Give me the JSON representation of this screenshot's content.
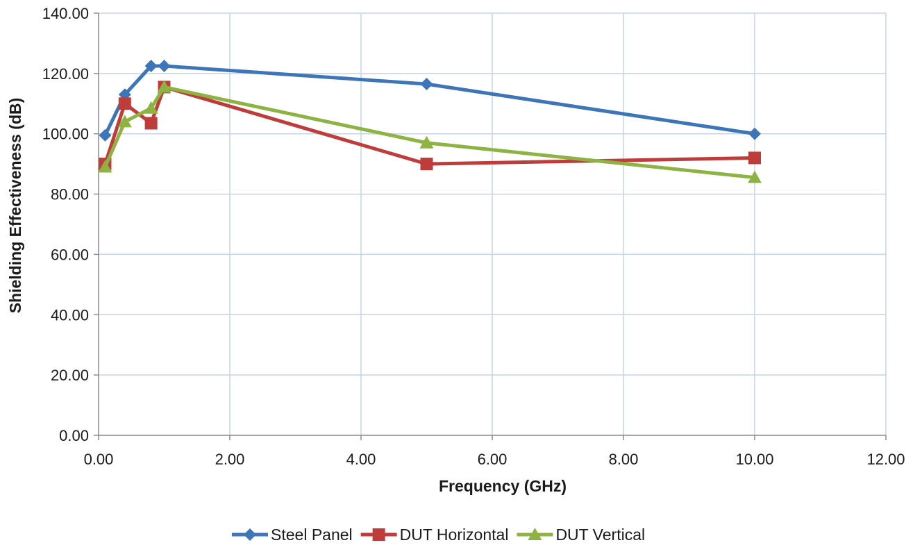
{
  "chart_data": {
    "type": "line",
    "title": "",
    "xlabel": "Frequency (GHz)",
    "ylabel": "Shielding Effectiveness (dB)",
    "xlim": [
      0,
      12
    ],
    "ylim": [
      0,
      140
    ],
    "x_ticks": [
      "0.00",
      "2.00",
      "4.00",
      "6.00",
      "8.00",
      "10.00",
      "12.00"
    ],
    "y_ticks": [
      "0.00",
      "20.00",
      "40.00",
      "60.00",
      "80.00",
      "100.00",
      "120.00",
      "140.00"
    ],
    "grid": true,
    "legend_position": "bottom",
    "series": [
      {
        "name": "Steel Panel",
        "color": "#3C75B8",
        "marker": "diamond",
        "points": [
          [
            0.1,
            99.5
          ],
          [
            0.4,
            113
          ],
          [
            0.8,
            122.5
          ],
          [
            1.0,
            122.5
          ],
          [
            5.0,
            116.5
          ],
          [
            10.0,
            100
          ]
        ]
      },
      {
        "name": "DUT Horizontal",
        "color": "#BE3D3A",
        "marker": "square",
        "points": [
          [
            0.1,
            90
          ],
          [
            0.4,
            110
          ],
          [
            0.8,
            103.5
          ],
          [
            1.0,
            115.5
          ],
          [
            5.0,
            90
          ],
          [
            10.0,
            92
          ]
        ]
      },
      {
        "name": "DUT Vertical",
        "color": "#8DB443",
        "marker": "triangle",
        "points": [
          [
            0.1,
            89
          ],
          [
            0.4,
            104
          ],
          [
            0.8,
            108.5
          ],
          [
            1.0,
            115.5
          ],
          [
            5.0,
            97
          ],
          [
            10.0,
            85.5
          ]
        ]
      }
    ]
  }
}
